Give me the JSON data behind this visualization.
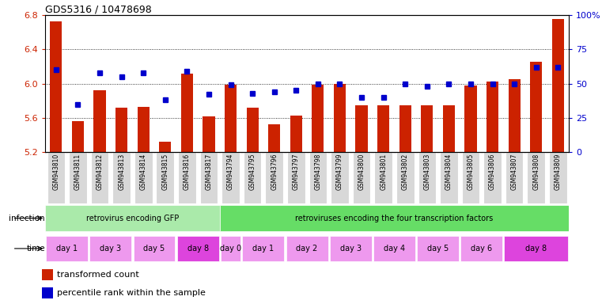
{
  "title": "GDS5316 / 10478698",
  "samples": [
    "GSM943810",
    "GSM943811",
    "GSM943812",
    "GSM943813",
    "GSM943814",
    "GSM943815",
    "GSM943816",
    "GSM943817",
    "GSM943794",
    "GSM943795",
    "GSM943796",
    "GSM943797",
    "GSM943798",
    "GSM943799",
    "GSM943800",
    "GSM943801",
    "GSM943802",
    "GSM943803",
    "GSM943804",
    "GSM943805",
    "GSM943806",
    "GSM943807",
    "GSM943808",
    "GSM943809"
  ],
  "bar_values": [
    6.73,
    5.56,
    5.92,
    5.72,
    5.73,
    5.32,
    6.12,
    5.62,
    5.99,
    5.72,
    5.52,
    5.63,
    5.99,
    6.0,
    5.75,
    5.75,
    5.75,
    5.75,
    5.75,
    5.98,
    6.02,
    6.05,
    6.26,
    6.76
  ],
  "percentile_values": [
    60,
    35,
    58,
    55,
    58,
    38,
    59,
    42,
    49,
    43,
    44,
    45,
    50,
    50,
    40,
    40,
    50,
    48,
    50,
    50,
    50,
    50,
    62,
    62
  ],
  "ymin": 5.2,
  "ymax": 6.8,
  "yticks": [
    5.2,
    5.6,
    6.0,
    6.4,
    6.8
  ],
  "bar_color": "#cc2200",
  "percentile_color": "#0000cc",
  "background_color": "#ffffff",
  "tick_bg_color": "#d8d8d8",
  "infection_groups": [
    {
      "label": "retrovirus encoding GFP",
      "start": 0,
      "end": 8,
      "color": "#aaeaaa"
    },
    {
      "label": "retroviruses encoding the four transcription factors",
      "start": 8,
      "end": 24,
      "color": "#66dd66"
    }
  ],
  "time_groups": [
    {
      "label": "day 1",
      "start": 0,
      "end": 2,
      "color": "#ee99ee"
    },
    {
      "label": "day 3",
      "start": 2,
      "end": 4,
      "color": "#ee99ee"
    },
    {
      "label": "day 5",
      "start": 4,
      "end": 6,
      "color": "#ee99ee"
    },
    {
      "label": "day 8",
      "start": 6,
      "end": 8,
      "color": "#dd44dd"
    },
    {
      "label": "day 0",
      "start": 8,
      "end": 9,
      "color": "#ee99ee"
    },
    {
      "label": "day 1",
      "start": 9,
      "end": 11,
      "color": "#ee99ee"
    },
    {
      "label": "day 2",
      "start": 11,
      "end": 13,
      "color": "#ee99ee"
    },
    {
      "label": "day 3",
      "start": 13,
      "end": 15,
      "color": "#ee99ee"
    },
    {
      "label": "day 4",
      "start": 15,
      "end": 17,
      "color": "#ee99ee"
    },
    {
      "label": "day 5",
      "start": 17,
      "end": 19,
      "color": "#ee99ee"
    },
    {
      "label": "day 6",
      "start": 19,
      "end": 21,
      "color": "#ee99ee"
    },
    {
      "label": "day 8",
      "start": 21,
      "end": 24,
      "color": "#dd44dd"
    }
  ],
  "right_yticks": [
    0,
    25,
    50,
    75,
    100
  ],
  "right_yticklabels": [
    "0",
    "25",
    "50",
    "75",
    "100%"
  ],
  "legend_items": [
    {
      "color": "#cc2200",
      "label": "transformed count"
    },
    {
      "color": "#0000cc",
      "label": "percentile rank within the sample"
    }
  ]
}
